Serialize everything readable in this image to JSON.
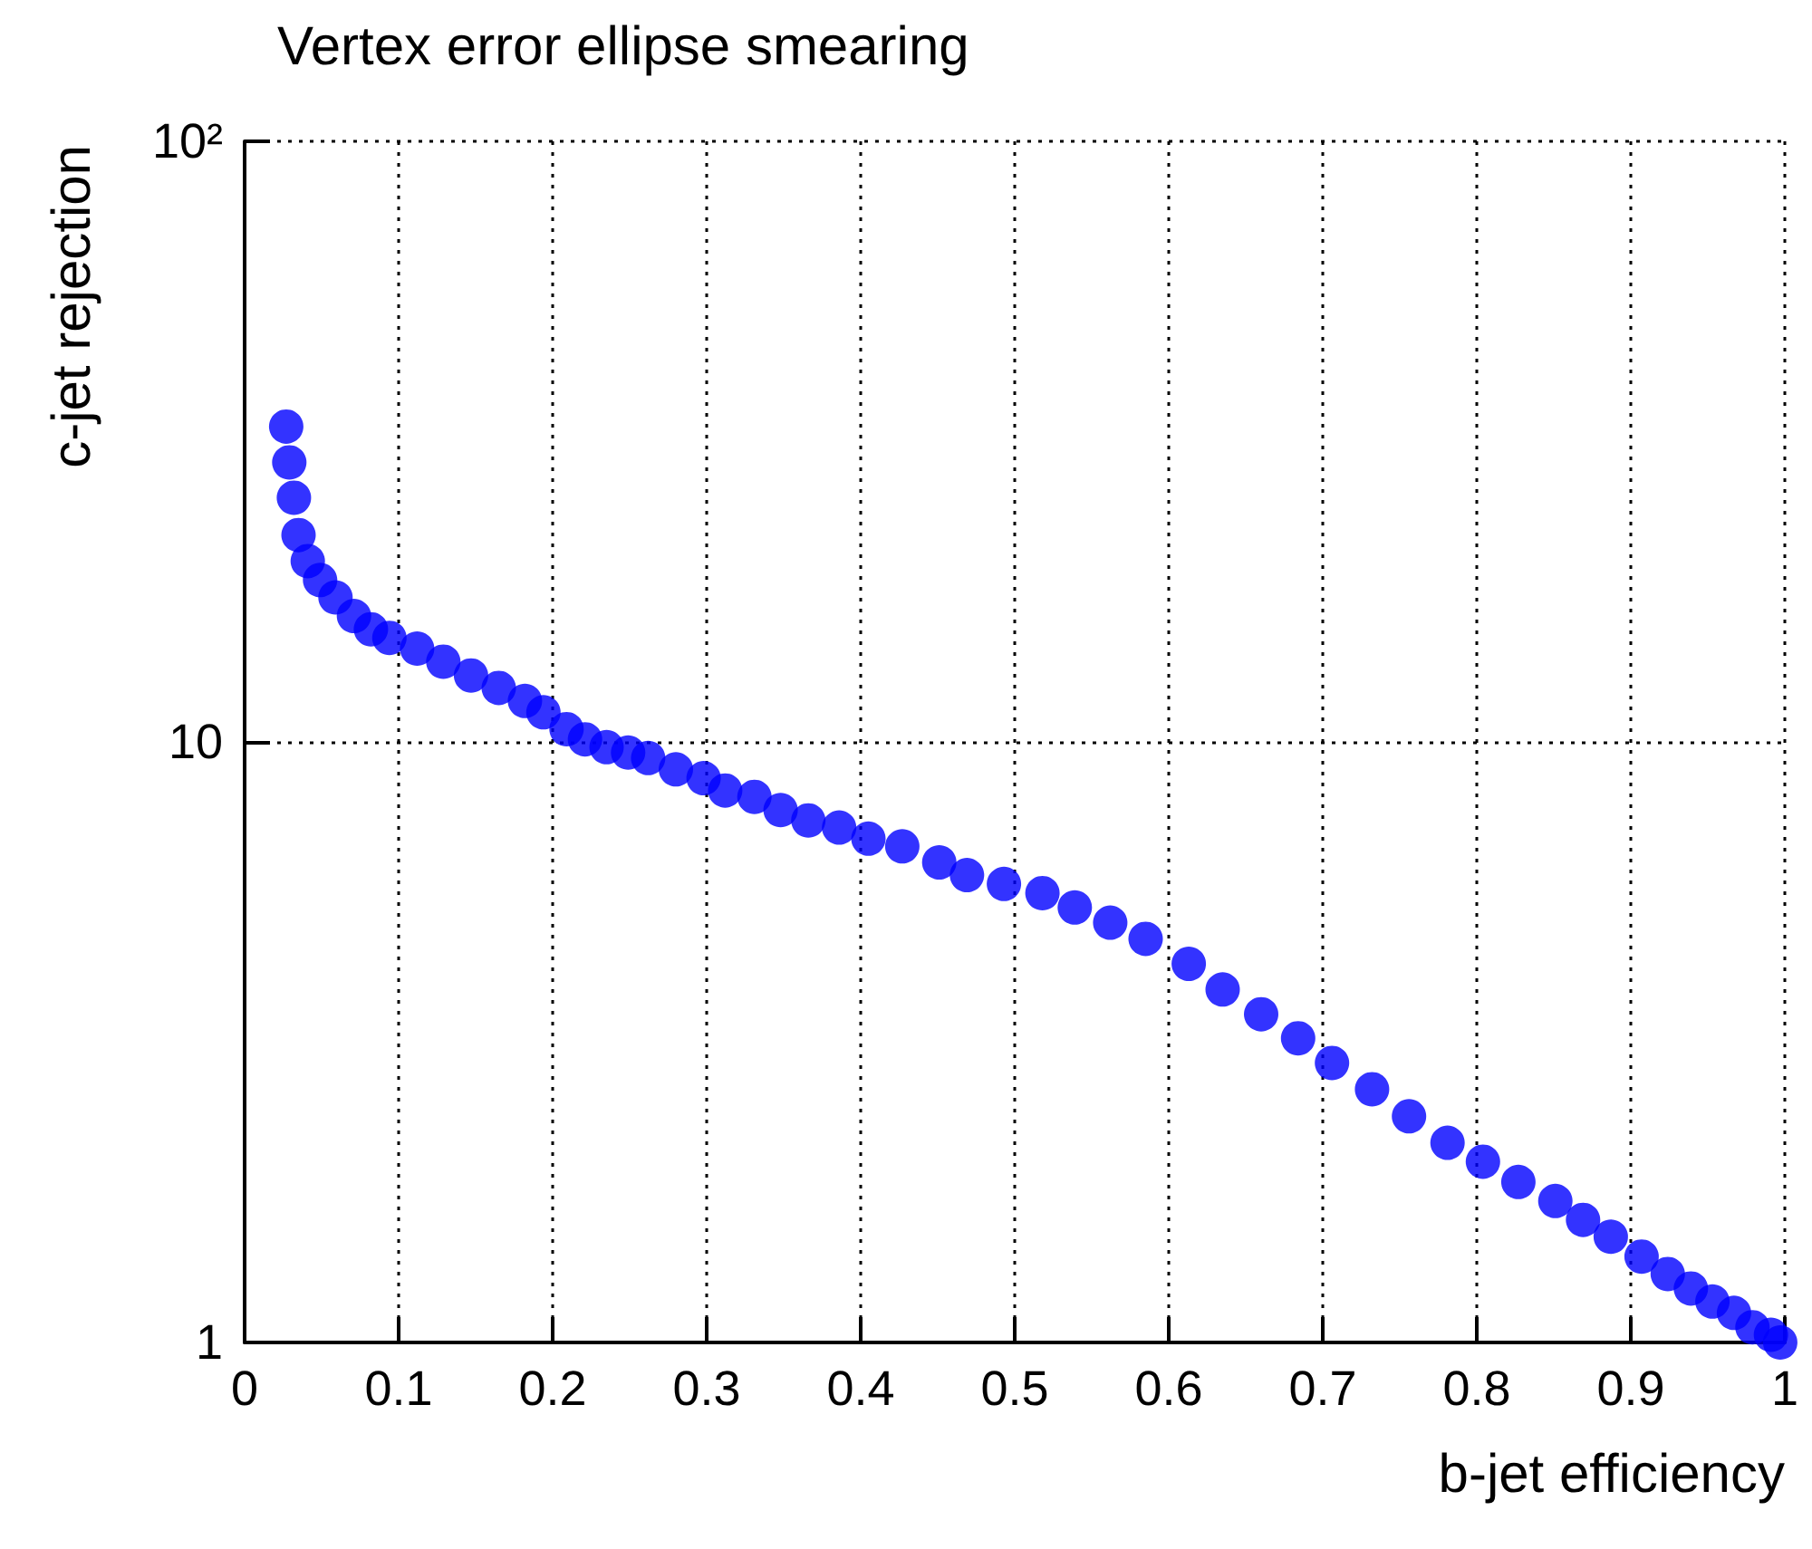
{
  "chart_data": {
    "type": "scatter",
    "title": "Vertex error ellipse smearing",
    "xlabel": "b-jet efficiency",
    "ylabel": "c-jet rejection",
    "x": [
      0.027,
      0.029,
      0.032,
      0.035,
      0.041,
      0.049,
      0.059,
      0.071,
      0.082,
      0.094,
      0.112,
      0.129,
      0.147,
      0.165,
      0.182,
      0.194,
      0.209,
      0.221,
      0.235,
      0.249,
      0.262,
      0.28,
      0.298,
      0.312,
      0.331,
      0.348,
      0.366,
      0.386,
      0.405,
      0.427,
      0.451,
      0.469,
      0.493,
      0.518,
      0.539,
      0.562,
      0.585,
      0.613,
      0.635,
      0.66,
      0.684,
      0.706,
      0.732,
      0.756,
      0.781,
      0.804,
      0.827,
      0.851,
      0.869,
      0.887,
      0.907,
      0.924,
      0.939,
      0.953,
      0.967,
      0.979,
      0.991,
      0.997
    ],
    "series": [
      {
        "color": "#0000ff",
        "values": [
          33.5,
          29.2,
          25.5,
          22.1,
          20.0,
          18.6,
          17.4,
          16.2,
          15.4,
          14.9,
          14.3,
          13.6,
          12.9,
          12.3,
          11.7,
          11.2,
          10.5,
          10.1,
          9.8,
          9.6,
          9.4,
          9.0,
          8.7,
          8.3,
          8.1,
          7.7,
          7.4,
          7.2,
          6.9,
          6.7,
          6.3,
          6.0,
          5.8,
          5.6,
          5.3,
          5.0,
          4.7,
          4.27,
          3.87,
          3.52,
          3.21,
          2.92,
          2.64,
          2.38,
          2.15,
          2.0,
          1.85,
          1.72,
          1.6,
          1.5,
          1.39,
          1.3,
          1.23,
          1.17,
          1.12,
          1.06,
          1.03,
          1.0
        ]
      }
    ],
    "xlim": [
      0,
      1
    ],
    "xticks": [
      0,
      0.1,
      0.2,
      0.3,
      0.4,
      0.5,
      0.6,
      0.7,
      0.8,
      0.9,
      1
    ],
    "ylim": [
      1,
      100
    ],
    "yticks": [
      1,
      10,
      {
        "value": 100,
        "label": "10²"
      }
    ],
    "log": "y",
    "grid": true,
    "marker": "circle"
  }
}
